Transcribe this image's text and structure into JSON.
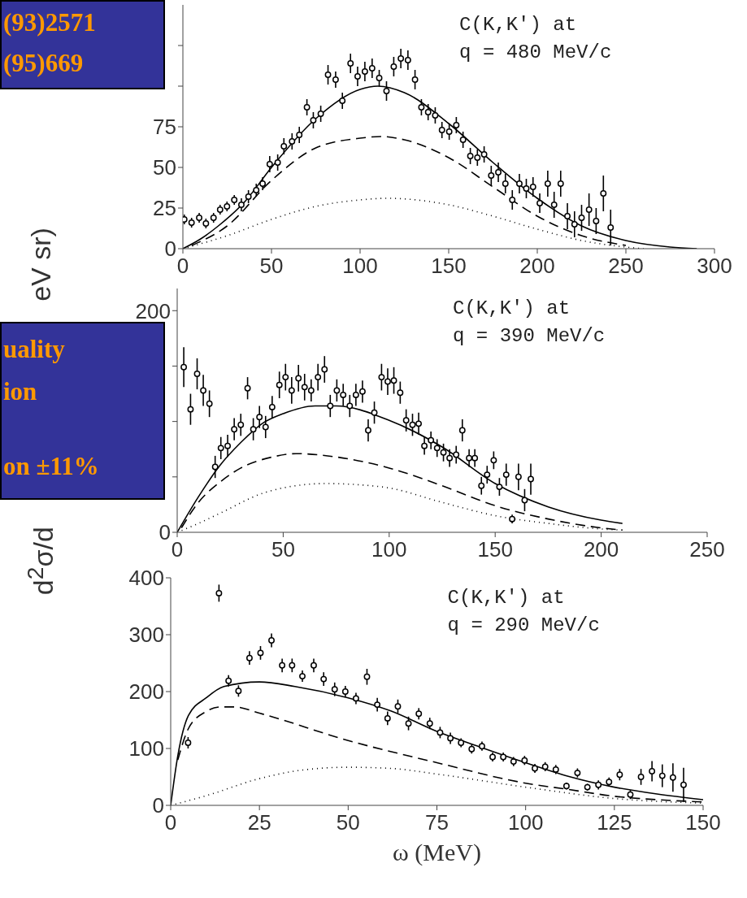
{
  "chart_data": [
    {
      "type": "scatter",
      "title": "C(K,K′) at\nq = 480 MeV/c",
      "ylabel": "eV sr)",
      "annotations": [
        "(93)2571",
        "(95)669"
      ],
      "xlim": [
        0,
        300
      ],
      "xticks": [
        0,
        50,
        100,
        150,
        200,
        250,
        300
      ],
      "ylim": [
        0,
        150
      ],
      "yticks": [
        0,
        25,
        50,
        75,
        {
          "value": 100,
          "label": null
        },
        {
          "value": 125,
          "label": null
        }
      ],
      "grid": false,
      "series": [
        {
          "color": "#000000",
          "marker": "circle",
          "x": [
            0.8,
            4.9,
            9.2,
            13,
            17.3,
            21,
            24.9,
            29,
            33,
            37,
            41.4,
            45,
            49,
            53.5,
            57,
            61.6,
            65.7,
            70,
            73.6,
            77.8,
            81.9,
            86.2,
            90,
            94.6,
            98.6,
            102.7,
            106.8,
            110.8,
            114.9,
            119,
            123,
            127,
            131,
            134.6,
            138.4,
            142.4,
            146.2,
            150.3,
            154.3,
            158.1,
            162.2,
            166.2,
            170,
            174,
            178,
            182,
            185.9,
            189.9,
            193.8,
            197.6,
            201.4,
            205.9,
            209.5,
            213.2,
            217,
            221,
            225,
            229.2,
            233.2,
            237.3,
            241.4
          ],
          "values": [
            18,
            16,
            19,
            15.5,
            19,
            24,
            26,
            30,
            27,
            32,
            36,
            40,
            52,
            53,
            63,
            66,
            70,
            87,
            79,
            83,
            107,
            104,
            91,
            114,
            106,
            109,
            111,
            105,
            97,
            112,
            117,
            116,
            104,
            87,
            84,
            82,
            73,
            72,
            76,
            67,
            57,
            56,
            58,
            45,
            47,
            40,
            30,
            40,
            37,
            38,
            28,
            40,
            27,
            40,
            20,
            15,
            19,
            24,
            17,
            34,
            13
          ],
          "errors": [
            3,
            3,
            3,
            3,
            3,
            3,
            3,
            3,
            4,
            4,
            4,
            4,
            5,
            5,
            5,
            5,
            5,
            5,
            5,
            5,
            6,
            5,
            5,
            6,
            6,
            6,
            6,
            5,
            6,
            6,
            6,
            6,
            6,
            5,
            5,
            5,
            5,
            5,
            5,
            5,
            5,
            5,
            5,
            6,
            6,
            6,
            6,
            6,
            6,
            6,
            6,
            8,
            8,
            8,
            8,
            8,
            8,
            10,
            8,
            11,
            11
          ]
        },
        {
          "type": "line",
          "color": "#000000",
          "line_style": "solid",
          "marker": "none",
          "x": [
            0,
            10,
            20,
            35,
            50,
            75,
            100,
            110,
            125,
            150,
            175,
            200,
            225,
            250,
            275,
            290
          ],
          "values": [
            0,
            6,
            14,
            29,
            50,
            80,
            98,
            100,
            96,
            77,
            53,
            31,
            14,
            5,
            1,
            0
          ]
        },
        {
          "type": "line",
          "color": "#000000",
          "line_style": "dashed",
          "marker": "none",
          "x": [
            5,
            25,
            50,
            75,
            100,
            112,
            125,
            150,
            175,
            200,
            225,
            250
          ],
          "values": [
            2,
            14,
            42,
            62,
            68,
            69,
            67,
            56,
            38,
            20,
            8,
            2
          ]
        },
        {
          "type": "line",
          "color": "#000000",
          "line_style": "dotted",
          "marker": "none",
          "x": [
            0,
            25,
            50,
            75,
            100,
            115,
            150,
            175,
            200,
            225,
            250,
            260
          ],
          "values": [
            0,
            8,
            18,
            26,
            30,
            31,
            27,
            20,
            12,
            5,
            1,
            0
          ]
        }
      ]
    },
    {
      "type": "scatter",
      "title": "C(K,K′) at\nq = 390 MeV/c",
      "ylabel": "d$^{2}$σ/d",
      "annotations": [
        "uality",
        "ion",
        "on ±11%"
      ],
      "xlim": [
        0,
        250
      ],
      "xticks": [
        0,
        50,
        100,
        150,
        200,
        250
      ],
      "ylim": [
        0,
        220
      ],
      "yticks": [
        0,
        {
          "value": 50,
          "label": null
        },
        {
          "value": 100,
          "label": null
        },
        {
          "value": 150,
          "label": null
        },
        200
      ],
      "grid": false,
      "series": [
        {
          "color": "#000000",
          "marker": "circle",
          "x": [
            3.1,
            6.3,
            9.4,
            12.3,
            15.2,
            17.9,
            20.6,
            23.8,
            26.9,
            30,
            33.2,
            35.9,
            38.8,
            41.7,
            44.8,
            48.2,
            51.1,
            54,
            57.2,
            60.1,
            63.2,
            66.4,
            69.5,
            72.2,
            75.3,
            78.3,
            81.4,
            84.3,
            87.4,
            90.1,
            93,
            96.4,
            99.3,
            102.2,
            105.2,
            108,
            111,
            113.9,
            116.6,
            119.7,
            122.6,
            125.6,
            128.5,
            131.6,
            134.5,
            137.7,
            140.4,
            143.5,
            146.2,
            149.3,
            152,
            155.2,
            158,
            161,
            163.9,
            166.8
          ],
          "values": [
            149,
            111,
            143,
            128,
            116,
            59,
            76,
            78,
            93,
            97,
            130,
            93,
            104,
            95,
            113,
            133,
            140,
            128,
            139,
            131,
            128,
            140,
            147,
            114,
            128,
            124,
            114,
            124,
            127,
            92,
            108,
            140,
            136,
            137,
            126,
            101,
            97,
            98,
            78,
            83,
            76,
            72,
            67,
            70,
            92,
            67,
            67,
            42,
            52,
            65,
            41,
            52,
            12,
            50,
            29,
            48
          ],
          "errors": [
            18,
            14,
            14,
            14,
            12,
            10,
            10,
            10,
            10,
            10,
            10,
            10,
            10,
            10,
            10,
            12,
            12,
            12,
            12,
            12,
            10,
            12,
            12,
            10,
            10,
            10,
            10,
            10,
            10,
            10,
            10,
            12,
            12,
            12,
            10,
            10,
            10,
            10,
            8,
            8,
            8,
            8,
            8,
            8,
            10,
            8,
            8,
            8,
            8,
            8,
            8,
            10,
            4,
            12,
            10,
            14
          ]
        },
        {
          "type": "line",
          "color": "#000000",
          "line_style": "solid",
          "marker": "none",
          "x": [
            0,
            10,
            20,
            30,
            40,
            50,
            65,
            75,
            100,
            125,
            150,
            175,
            200,
            210
          ],
          "values": [
            0,
            32,
            60,
            81,
            98,
            107,
            114,
            114,
            101,
            77,
            44,
            23,
            11,
            8
          ]
        },
        {
          "type": "line",
          "color": "#000000",
          "line_style": "dashed",
          "marker": "none",
          "x": [
            2,
            10,
            20,
            30,
            45,
            56,
            75,
            100,
            125,
            150,
            175,
            200,
            210
          ],
          "values": [
            4,
            27,
            45,
            58,
            68,
            71,
            68,
            58,
            42,
            24,
            12,
            4,
            2
          ]
        },
        {
          "type": "line",
          "color": "#000000",
          "line_style": "dotted",
          "marker": "none",
          "x": [
            0,
            10,
            20,
            40,
            60,
            70,
            85,
            100,
            125,
            150,
            175,
            200,
            210
          ],
          "values": [
            0,
            8,
            17,
            35,
            43,
            44,
            43,
            40,
            27,
            15,
            8,
            3,
            2
          ]
        }
      ]
    },
    {
      "type": "scatter",
      "title": "C(K,K′) at\nq = 290 MeV/c",
      "xlabel": "ω (MeV)",
      "xlim": [
        0,
        150
      ],
      "xticks": [
        0,
        25,
        50,
        75,
        100,
        125,
        150
      ],
      "ylim": [
        0,
        400
      ],
      "yticks": [
        0,
        100,
        200,
        300,
        400
      ],
      "grid": false,
      "series": [
        {
          "color": "#000000",
          "marker": "circle",
          "x": [
            4.9,
            13.6,
            16.3,
            19.1,
            22.2,
            25.3,
            28.4,
            31.4,
            34.2,
            37.1,
            40.3,
            43.1,
            46.2,
            49.2,
            52.2,
            55.3,
            58.2,
            61.1,
            64,
            67,
            69.9,
            73,
            75.9,
            78.8,
            81.8,
            84.8,
            87.7,
            90.7,
            93.7,
            96.6,
            99.7,
            102.6,
            105.5,
            108.5,
            111.5,
            114.6,
            117.4,
            120.5,
            123.5,
            126.5,
            129.5,
            132.5,
            135.6,
            138.5,
            141.5,
            144.5
          ],
          "values": [
            110,
            373,
            219,
            201,
            259,
            268,
            290,
            246,
            246,
            227,
            246,
            222,
            204,
            200,
            188,
            226,
            177,
            153,
            174,
            144,
            161,
            144,
            128,
            118,
            110,
            99,
            104,
            85,
            85,
            77,
            79,
            65,
            68,
            63,
            34,
            57,
            32,
            36,
            41,
            54,
            19,
            50,
            60,
            52,
            49,
            36
          ],
          "errors": [
            10,
            15,
            10,
            10,
            12,
            12,
            12,
            12,
            12,
            10,
            12,
            12,
            12,
            10,
            10,
            14,
            12,
            12,
            12,
            12,
            10,
            10,
            10,
            10,
            8,
            8,
            8,
            8,
            8,
            8,
            8,
            8,
            8,
            8,
            6,
            8,
            6,
            8,
            8,
            10,
            8,
            14,
            18,
            20,
            25,
            30
          ]
        },
        {
          "type": "line",
          "color": "#000000",
          "line_style": "solid",
          "marker": "none",
          "x": [
            0,
            2,
            5,
            10,
            15,
            25,
            35,
            50,
            62,
            75,
            87,
            100,
            112,
            125,
            137,
            150
          ],
          "values": [
            0,
            87,
            158,
            189,
            209,
            217,
            209,
            189,
            166,
            130,
            103,
            75,
            51,
            32,
            20,
            10
          ]
        },
        {
          "type": "line",
          "color": "#000000",
          "line_style": "dashed",
          "marker": "none",
          "x": [
            2,
            5,
            10,
            14,
            18,
            25,
            50,
            75,
            100,
            112,
            125,
            137,
            150
          ],
          "values": [
            80,
            135,
            165,
            173,
            173,
            162,
            114,
            75,
            39,
            28,
            16,
            10,
            6
          ]
        },
        {
          "type": "line",
          "color": "#000000",
          "line_style": "dotted",
          "marker": "none",
          "x": [
            0,
            10,
            25,
            37,
            50,
            62,
            75,
            100,
            125,
            150
          ],
          "values": [
            0,
            17,
            47,
            62,
            67,
            65,
            55,
            32,
            12,
            4
          ]
        }
      ]
    }
  ]
}
